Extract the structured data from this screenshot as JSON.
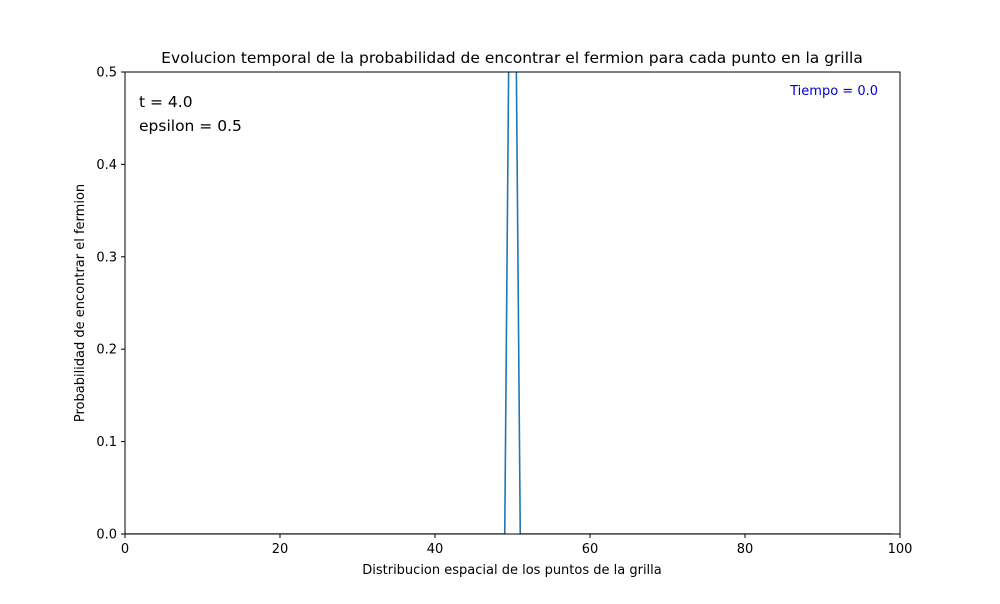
{
  "chart_data": {
    "type": "line",
    "title": "Evolucion temporal de la probabilidad de encontrar el fermion para cada punto en la grilla",
    "xlabel": "Distribucion espacial de los puntos de la grilla",
    "ylabel": "Probabilidad de encontrar el fermion",
    "xlim": [
      0,
      100
    ],
    "ylim": [
      0,
      0.5
    ],
    "xticks": [
      0,
      20,
      40,
      60,
      80,
      100
    ],
    "yticks": [
      0.0,
      0.1,
      0.2,
      0.3,
      0.4,
      0.5
    ],
    "xtick_labels": [
      "0",
      "20",
      "40",
      "60",
      "80",
      "100"
    ],
    "ytick_labels": [
      "0.0",
      "0.1",
      "0.2",
      "0.3",
      "0.4",
      "0.5"
    ],
    "grid": false,
    "annotations": [
      {
        "id": "t",
        "text": "t = 4.0",
        "color": "#000000"
      },
      {
        "id": "epsilon",
        "text": "epsilon = 0.5",
        "color": "#000000"
      },
      {
        "id": "time",
        "text": "Tiempo = 0.0",
        "color": "#0000cc"
      }
    ],
    "series": [
      {
        "color": "#1f77b4",
        "x": [
          0,
          49,
          50,
          51,
          99
        ],
        "y": [
          0.0,
          0.0,
          1.0,
          0.0,
          0.0
        ]
      }
    ]
  }
}
